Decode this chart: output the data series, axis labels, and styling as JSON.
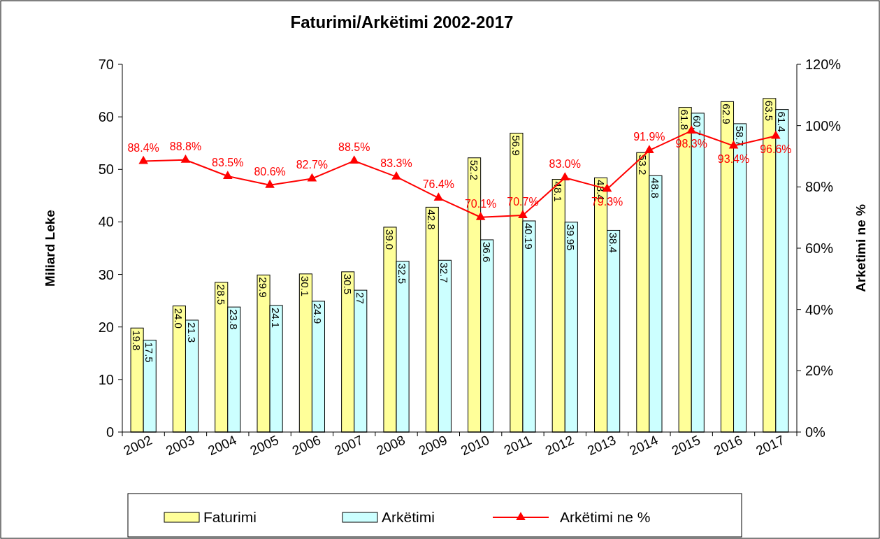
{
  "chart_data": {
    "type": "bar",
    "title": "Faturimi/Arkëtimi 2002-2017",
    "ylabel": "Miliard Leke",
    "y2label": "Arketimi ne  %",
    "categories": [
      "2002",
      "2003",
      "2004",
      "2005",
      "2006",
      "2007",
      "2008",
      "2009",
      "2010",
      "2011",
      "2012",
      "2013",
      "2014",
      "2015",
      "2016",
      "2017"
    ],
    "series": [
      {
        "name": "Faturimi",
        "color": "#ffff99",
        "values": [
          19.8,
          24.0,
          28.5,
          29.9,
          30.1,
          30.5,
          39.0,
          42.8,
          52.2,
          56.9,
          48.1,
          48.4,
          53.2,
          61.8,
          62.9,
          63.5
        ],
        "value_labels": [
          "19.8",
          "24.0",
          "28.5",
          "29.9",
          "30.1",
          "30.5",
          "39.0",
          "42.8",
          "52.2",
          "56.9",
          "48.1",
          "48.4",
          "53.2",
          "61.8",
          "62.9",
          "63.5"
        ]
      },
      {
        "name": "Arkëtimi",
        "color": "#ccffff",
        "values": [
          17.5,
          21.3,
          23.8,
          24.1,
          24.9,
          27,
          32.5,
          32.7,
          36.6,
          40.19,
          39.95,
          38.4,
          48.8,
          60.7,
          58.7,
          61.4
        ],
        "value_labels": [
          "17.5",
          "21.3",
          "23.8",
          "24.1",
          "24.9",
          "27",
          "32.5",
          "32.7",
          "36.6",
          "40.19",
          "39.95",
          "38.4",
          "48.8",
          "60.7",
          "58.7",
          "61.4"
        ]
      },
      {
        "name": "Arkëtimi ne  %",
        "type": "line",
        "axis": "y2",
        "color": "#ff0000",
        "marker": "triangle",
        "values": [
          88.4,
          88.8,
          83.5,
          80.6,
          82.7,
          88.5,
          83.3,
          76.4,
          70.1,
          70.7,
          83.0,
          79.3,
          91.9,
          98.3,
          93.4,
          96.6
        ],
        "value_labels": [
          "88.4%",
          "88.8%",
          "83.5%",
          "80.6%",
          "82.7%",
          "88.5%",
          "83.3%",
          "76.4%",
          "70.1%",
          "70.7%",
          "83.0%",
          "79.3%",
          "91.9%",
          "98.3%",
          "93.4%",
          "96.6%"
        ]
      }
    ],
    "ylim": [
      0,
      70
    ],
    "yticks": [
      0,
      10,
      20,
      30,
      40,
      50,
      60,
      70
    ],
    "y2lim": [
      0,
      120
    ],
    "y2ticks": [
      {
        "value": 0,
        "label": "0%"
      },
      {
        "value": 20,
        "label": "20%"
      },
      {
        "value": 40,
        "label": "40%"
      },
      {
        "value": 60,
        "label": "60%"
      },
      {
        "value": 80,
        "label": "80%"
      },
      {
        "value": 100,
        "label": "100%"
      },
      {
        "value": 120,
        "label": "120%"
      }
    ],
    "legend": "bottom"
  }
}
